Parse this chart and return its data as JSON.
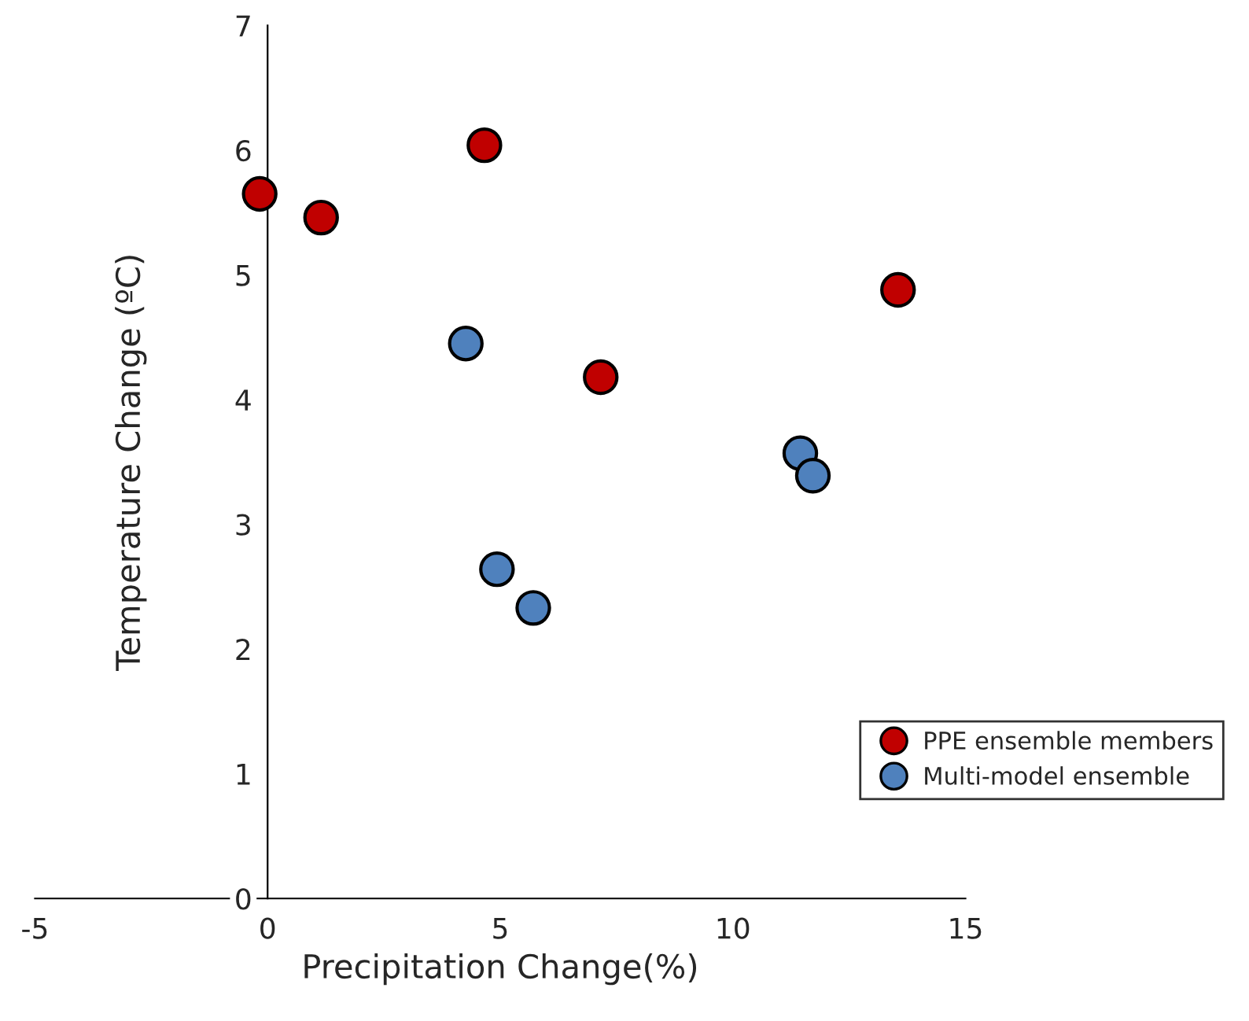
{
  "chart_data": {
    "type": "scatter",
    "xlabel": "Precipitation Change(%)",
    "ylabel": "Temperature Change (ºC)",
    "xlim": [
      -5,
      15
    ],
    "ylim": [
      0,
      7
    ],
    "xticks": [
      -5,
      0,
      5,
      10,
      15
    ],
    "yticks": [
      0,
      1,
      2,
      3,
      4,
      5,
      6,
      7
    ],
    "grid": false,
    "legend": "right",
    "marker": "circle",
    "series": [
      {
        "name": "PPE ensemble members",
        "color": "#c00000",
        "x": [
          -0.17,
          1.15,
          4.66,
          7.16,
          13.55
        ],
        "values": [
          5.65,
          5.46,
          6.04,
          4.18,
          4.88
        ]
      },
      {
        "name": "Multi-model ensemble",
        "color": "#4f81bd",
        "x": [
          4.26,
          11.45,
          11.72,
          4.93,
          5.71
        ],
        "values": [
          4.45,
          3.57,
          3.39,
          2.64,
          2.33
        ]
      }
    ]
  }
}
